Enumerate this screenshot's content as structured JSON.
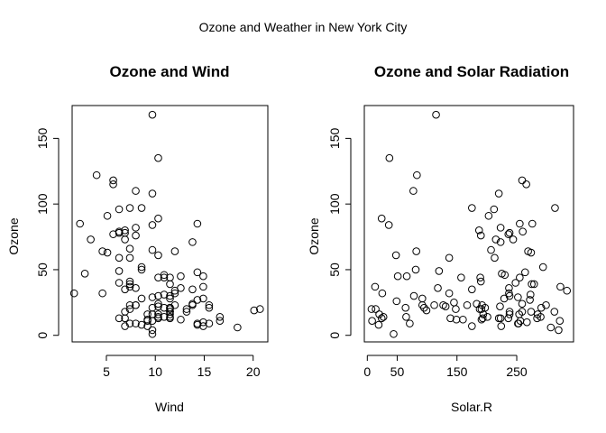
{
  "figure": {
    "title": "Ozone and Weather in New York City"
  },
  "chart_data": [
    {
      "type": "scatter",
      "title": "Ozone and Wind",
      "xlabel": "Wind",
      "ylabel": "Ozone",
      "xlim": [
        1.5,
        21.5
      ],
      "ylim": [
        -5,
        175
      ],
      "xticks": [
        5,
        10,
        15,
        20
      ],
      "yticks": [
        0,
        50,
        100,
        150
      ],
      "grid": false,
      "legend": "none",
      "points": [
        [
          7.4,
          41
        ],
        [
          8.0,
          36
        ],
        [
          12.6,
          12
        ],
        [
          11.5,
          18
        ],
        [
          8.6,
          28
        ],
        [
          13.8,
          23
        ],
        [
          20.1,
          19
        ],
        [
          8.6,
          8
        ],
        [
          6.9,
          7
        ],
        [
          9.7,
          16
        ],
        [
          9.2,
          11
        ],
        [
          10.9,
          14
        ],
        [
          13.2,
          18
        ],
        [
          11.5,
          14
        ],
        [
          12.0,
          34
        ],
        [
          18.4,
          6
        ],
        [
          11.5,
          30
        ],
        [
          9.7,
          11
        ],
        [
          9.7,
          1
        ],
        [
          16.6,
          11
        ],
        [
          9.7,
          4
        ],
        [
          12.0,
          32
        ],
        [
          12.0,
          23
        ],
        [
          14.9,
          45
        ],
        [
          5.7,
          115
        ],
        [
          7.4,
          37
        ],
        [
          9.7,
          29
        ],
        [
          13.8,
          71
        ],
        [
          11.5,
          39
        ],
        [
          8.0,
          23
        ],
        [
          11.5,
          21
        ],
        [
          14.9,
          37
        ],
        [
          20.7,
          20
        ],
        [
          9.2,
          12
        ],
        [
          11.5,
          13
        ],
        [
          10.3,
          135
        ],
        [
          6.3,
          49
        ],
        [
          1.7,
          32
        ],
        [
          4.6,
          64
        ],
        [
          6.3,
          40
        ],
        [
          5.7,
          77
        ],
        [
          7.4,
          97
        ],
        [
          8.6,
          97
        ],
        [
          14.3,
          85
        ],
        [
          14.9,
          10
        ],
        [
          14.3,
          27
        ],
        [
          14.9,
          7
        ],
        [
          14.3,
          48
        ],
        [
          6.9,
          35
        ],
        [
          10.3,
          61
        ],
        [
          6.3,
          79
        ],
        [
          5.1,
          63
        ],
        [
          11.5,
          16
        ],
        [
          6.9,
          80
        ],
        [
          9.7,
          108
        ],
        [
          11.5,
          20
        ],
        [
          8.6,
          52
        ],
        [
          8.0,
          82
        ],
        [
          8.6,
          50
        ],
        [
          12.0,
          64
        ],
        [
          7.4,
          59
        ],
        [
          7.4,
          39
        ],
        [
          7.4,
          9
        ],
        [
          9.2,
          16
        ],
        [
          6.9,
          78
        ],
        [
          13.8,
          35
        ],
        [
          7.4,
          66
        ],
        [
          4.0,
          122
        ],
        [
          10.3,
          89
        ],
        [
          8.0,
          110
        ],
        [
          11.5,
          44
        ],
        [
          11.5,
          28
        ],
        [
          9.7,
          65
        ],
        [
          10.3,
          22
        ],
        [
          6.3,
          59
        ],
        [
          7.4,
          23
        ],
        [
          10.9,
          31
        ],
        [
          10.3,
          44
        ],
        [
          15.5,
          21
        ],
        [
          14.3,
          9
        ],
        [
          12.6,
          45
        ],
        [
          9.7,
          168
        ],
        [
          3.4,
          73
        ],
        [
          8.0,
          76
        ],
        [
          5.7,
          118
        ],
        [
          9.7,
          84
        ],
        [
          2.3,
          85
        ],
        [
          6.3,
          96
        ],
        [
          6.3,
          78
        ],
        [
          6.9,
          73
        ],
        [
          5.1,
          91
        ],
        [
          2.8,
          47
        ],
        [
          4.6,
          32
        ],
        [
          7.4,
          20
        ],
        [
          15.5,
          23
        ],
        [
          10.9,
          21
        ],
        [
          10.3,
          24
        ],
        [
          10.9,
          44
        ],
        [
          9.7,
          21
        ],
        [
          14.9,
          28
        ],
        [
          15.5,
          9
        ],
        [
          6.3,
          13
        ],
        [
          10.9,
          46
        ],
        [
          11.5,
          18
        ],
        [
          6.9,
          13
        ],
        [
          13.8,
          24
        ],
        [
          10.3,
          16
        ],
        [
          10.3,
          13
        ],
        [
          8.0,
          23
        ],
        [
          12.6,
          36
        ],
        [
          9.2,
          7
        ],
        [
          10.3,
          14
        ],
        [
          10.3,
          30
        ],
        [
          16.6,
          14
        ],
        [
          6.9,
          18
        ],
        [
          13.2,
          20
        ],
        [
          14.3,
          8
        ],
        [
          8.0,
          9
        ],
        [
          11.5,
          21
        ]
      ]
    },
    {
      "type": "scatter",
      "title": "Ozone and Solar Radiation",
      "xlabel": "Solar.R",
      "ylabel": "Ozone",
      "xlim": [
        -5,
        345
      ],
      "ylim": [
        -5,
        175
      ],
      "xticks": [
        0,
        50,
        150,
        250
      ],
      "yticks": [
        0,
        50,
        100,
        150
      ],
      "grid": false,
      "legend": "none",
      "points": [
        [
          190,
          41
        ],
        [
          118,
          36
        ],
        [
          149,
          12
        ],
        [
          313,
          18
        ],
        [
          299,
          23
        ],
        [
          99,
          19
        ],
        [
          19,
          8
        ],
        [
          194,
          16
        ],
        [
          256,
          11
        ],
        [
          290,
          14
        ],
        [
          274,
          18
        ],
        [
          65,
          14
        ],
        [
          334,
          34
        ],
        [
          307,
          6
        ],
        [
          78,
          30
        ],
        [
          322,
          11
        ],
        [
          44,
          1
        ],
        [
          8,
          11
        ],
        [
          320,
          4
        ],
        [
          25,
          32
        ],
        [
          92,
          23
        ],
        [
          66,
          45
        ],
        [
          266,
          115
        ],
        [
          13,
          37
        ],
        [
          252,
          29
        ],
        [
          223,
          71
        ],
        [
          279,
          39
        ],
        [
          127,
          23
        ],
        [
          291,
          21
        ],
        [
          323,
          37
        ],
        [
          148,
          20
        ],
        [
          191,
          12
        ],
        [
          284,
          13
        ],
        [
          37,
          135
        ],
        [
          120,
          49
        ],
        [
          137,
          32
        ],
        [
          269,
          64
        ],
        [
          248,
          40
        ],
        [
          236,
          77
        ],
        [
          175,
          97
        ],
        [
          314,
          97
        ],
        [
          276,
          85
        ],
        [
          267,
          10
        ],
        [
          272,
          27
        ],
        [
          175,
          7
        ],
        [
          264,
          48
        ],
        [
          175,
          35
        ],
        [
          48,
          61
        ],
        [
          260,
          79
        ],
        [
          274,
          63
        ],
        [
          285,
          16
        ],
        [
          187,
          80
        ],
        [
          220,
          108
        ],
        [
          7,
          20
        ],
        [
          294,
          52
        ],
        [
          223,
          82
        ],
        [
          81,
          50
        ],
        [
          82,
          64
        ],
        [
          213,
          59
        ],
        [
          275,
          39
        ],
        [
          253,
          9
        ],
        [
          254,
          16
        ],
        [
          83,
          122
        ],
        [
          24,
          89
        ],
        [
          77,
          110
        ],
        [
          255,
          44
        ],
        [
          229,
          28
        ],
        [
          207,
          65
        ],
        [
          222,
          22
        ],
        [
          137,
          59
        ],
        [
          192,
          23
        ],
        [
          273,
          31
        ],
        [
          157,
          44
        ],
        [
          64,
          21
        ],
        [
          71,
          9
        ],
        [
          51,
          45
        ],
        [
          115,
          168
        ],
        [
          244,
          73
        ],
        [
          190,
          76
        ],
        [
          259,
          118
        ],
        [
          36,
          84
        ],
        [
          255,
          85
        ],
        [
          212,
          96
        ],
        [
          238,
          78
        ],
        [
          215,
          73
        ],
        [
          203,
          91
        ],
        [
          225,
          47
        ],
        [
          237,
          32
        ],
        [
          188,
          20
        ],
        [
          167,
          23
        ],
        [
          197,
          21
        ],
        [
          183,
          24
        ],
        [
          189,
          44
        ],
        [
          95,
          21
        ],
        [
          92,
          28
        ],
        [
          252,
          9
        ],
        [
          220,
          13
        ],
        [
          230,
          46
        ],
        [
          259,
          18
        ],
        [
          236,
          13
        ],
        [
          259,
          24
        ],
        [
          238,
          16
        ],
        [
          24,
          13
        ],
        [
          112,
          23
        ],
        [
          237,
          36
        ],
        [
          224,
          7
        ],
        [
          27,
          14
        ],
        [
          238,
          30
        ],
        [
          201,
          14
        ],
        [
          238,
          18
        ],
        [
          14,
          20
        ],
        [
          139,
          13
        ],
        [
          49,
          26
        ],
        [
          20,
          16
        ],
        [
          193,
          13
        ],
        [
          145,
          25
        ],
        [
          191,
          20
        ],
        [
          131,
          22
        ],
        [
          223,
          13
        ],
        [
          160,
          12
        ]
      ]
    }
  ]
}
